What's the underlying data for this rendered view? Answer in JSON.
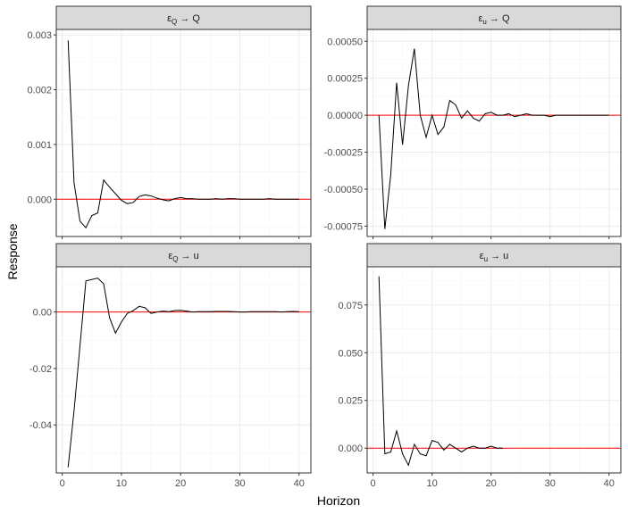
{
  "figure": {
    "xlabel": "Horizon",
    "ylabel": "Response"
  },
  "colors": {
    "panel_border": "#333333",
    "strip_fill": "#d9d9d9",
    "grid_major": "#ebebeb",
    "grid_minor": "#f5f5f5",
    "line": "#000000",
    "zero_line": "#ff0000"
  },
  "chart_data": [
    {
      "type": "line",
      "strip_parts": [
        "ε",
        "Q",
        " → Q"
      ],
      "xlim": [
        -1.0,
        42.0
      ],
      "ylim": [
        -0.00068,
        0.0031
      ],
      "xticks": [
        0,
        10,
        20,
        30,
        40
      ],
      "xtick_labels": [
        "0",
        "10",
        "20",
        "30",
        "40"
      ],
      "yticks": [
        0.0,
        0.001,
        0.002,
        0.003
      ],
      "ytick_labels": [
        "0.000",
        "0.001",
        "0.002",
        "0.003"
      ],
      "zero_line": 0,
      "grid": true,
      "x": [
        1,
        2,
        3,
        4,
        5,
        6,
        7,
        8,
        9,
        10,
        11,
        12,
        13,
        14,
        15,
        16,
        17,
        18,
        19,
        20,
        21,
        22,
        23,
        24,
        25,
        26,
        27,
        28,
        29,
        30,
        31,
        32,
        33,
        34,
        35,
        36,
        37,
        38,
        39,
        40
      ],
      "y": [
        0.0029,
        0.0003,
        -0.0004,
        -0.00052,
        -0.0003,
        -0.00025,
        0.00035,
        0.00022,
        0.0001,
        -2e-05,
        -8e-05,
        -6e-05,
        5e-05,
        8e-05,
        6e-05,
        2e-05,
        -1e-05,
        -3e-05,
        1e-05,
        3e-05,
        1e-05,
        1e-05,
        0.0,
        0.0,
        0.0,
        1e-05,
        0.0,
        1e-05,
        1e-05,
        0.0,
        0.0,
        0.0,
        0.0,
        0.0,
        1e-05,
        0.0,
        0.0,
        0.0,
        0.0,
        0.0
      ]
    },
    {
      "type": "line",
      "strip_parts": [
        "ε",
        "u",
        " → Q"
      ],
      "xlim": [
        -1.0,
        42.0
      ],
      "ylim": [
        -0.00082,
        0.00058
      ],
      "xticks": [
        0,
        10,
        20,
        30,
        40
      ],
      "xtick_labels": [
        "0",
        "10",
        "20",
        "30",
        "40"
      ],
      "yticks": [
        -0.00075,
        -0.0005,
        -0.00025,
        0.0,
        0.00025,
        0.0005
      ],
      "ytick_labels": [
        "-0.00075",
        "-0.00050",
        "-0.00025",
        "0.00000",
        "0.00025",
        "0.00050"
      ],
      "zero_line": 0,
      "grid": true,
      "x": [
        1,
        2,
        3,
        4,
        5,
        6,
        7,
        8,
        9,
        10,
        11,
        12,
        13,
        14,
        15,
        16,
        17,
        18,
        19,
        20,
        21,
        22,
        23,
        24,
        25,
        26,
        27,
        28,
        29,
        30,
        31,
        32,
        33,
        34,
        35,
        36,
        37,
        38,
        39,
        40
      ],
      "y": [
        0.0,
        -0.00077,
        -0.0004,
        0.00022,
        -0.0002,
        0.0002,
        0.00045,
        0.0,
        -0.00015,
        0.0,
        -0.00013,
        -8e-05,
        0.0001,
        7e-05,
        -2e-05,
        3e-05,
        -2e-05,
        -4e-05,
        1e-05,
        2e-05,
        0.0,
        0.0,
        1e-05,
        -1e-05,
        0.0,
        1e-05,
        0.0,
        0.0,
        0.0,
        -1e-05,
        0.0,
        0.0,
        0.0,
        0.0,
        0.0,
        0.0,
        0.0,
        0.0,
        0.0,
        0.0
      ]
    },
    {
      "type": "line",
      "strip_parts": [
        "ε",
        "Q",
        " → u"
      ],
      "xlim": [
        -1.0,
        42.0
      ],
      "ylim": [
        -0.057,
        0.016
      ],
      "xticks": [
        0,
        10,
        20,
        30,
        40
      ],
      "xtick_labels": [
        "0",
        "10",
        "20",
        "30",
        "40"
      ],
      "yticks": [
        -0.04,
        -0.02,
        0.0
      ],
      "ytick_labels": [
        "-0.04",
        "-0.02",
        "0.00"
      ],
      "zero_line": 0,
      "grid": true,
      "x": [
        1,
        2,
        3,
        4,
        5,
        6,
        7,
        8,
        9,
        10,
        11,
        12,
        13,
        14,
        15,
        16,
        17,
        18,
        19,
        20,
        21,
        22,
        23,
        24,
        25,
        26,
        27,
        28,
        29,
        30,
        31,
        32,
        33,
        34,
        35,
        36,
        37,
        38,
        39,
        40
      ],
      "y": [
        -0.055,
        -0.035,
        -0.012,
        0.011,
        0.0115,
        0.012,
        0.01,
        -0.002,
        -0.0075,
        -0.0035,
        -0.0005,
        0.0005,
        0.002,
        0.0015,
        -0.0005,
        0.0,
        0.0003,
        0.0001,
        0.0005,
        0.0006,
        0.0003,
        0.0,
        0.0001,
        0.0001,
        0.0001,
        0.0002,
        0.0002,
        0.0002,
        0.0001,
        0.0,
        0.0,
        0.0001,
        0.0001,
        0.0001,
        0.0001,
        0.0001,
        0.0,
        0.0001,
        0.0002,
        0.0001
      ]
    },
    {
      "type": "line",
      "strip_parts": [
        "ε",
        "u",
        " → u"
      ],
      "xlim": [
        -1.0,
        42.0
      ],
      "ylim": [
        -0.013,
        0.095
      ],
      "xticks": [
        0,
        10,
        20,
        30,
        40
      ],
      "xtick_labels": [
        "0",
        "10",
        "20",
        "30",
        "40"
      ],
      "yticks": [
        0.0,
        0.025,
        0.05,
        0.075
      ],
      "ytick_labels": [
        "0.000",
        "0.025",
        "0.050",
        "0.075"
      ],
      "zero_line": 0,
      "grid": true,
      "x": [
        1,
        2,
        3,
        4,
        5,
        6,
        7,
        8,
        9,
        10,
        11,
        12,
        13,
        14,
        15,
        16,
        17,
        18,
        19,
        20,
        21,
        22
      ],
      "y": [
        0.09,
        -0.003,
        -0.002,
        0.009,
        -0.003,
        -0.009,
        0.002,
        -0.003,
        -0.004,
        0.004,
        0.003,
        -0.001,
        0.002,
        0.0,
        -0.002,
        0.0,
        0.001,
        0.0,
        0.0,
        0.001,
        0.0,
        0.0
      ]
    }
  ]
}
